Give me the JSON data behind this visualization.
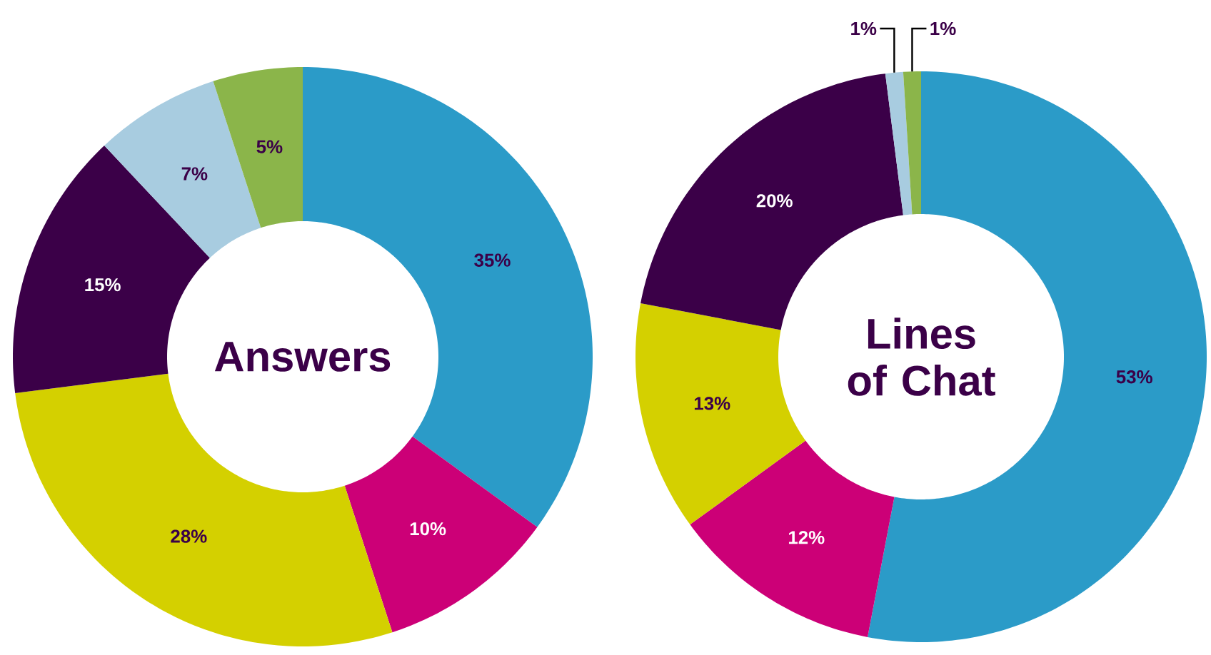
{
  "chart_data": [
    {
      "type": "donut",
      "title": "Answers",
      "categories": [
        null,
        null,
        null,
        null,
        null,
        null
      ],
      "values": [
        35,
        10,
        28,
        15,
        7,
        5
      ],
      "value_labels": [
        "35%",
        "10%",
        "28%",
        "15%",
        "7%",
        "5%"
      ],
      "colors": [
        "#2b9bc8",
        "#cc0077",
        "#d4d000",
        "#3b0048",
        "#a8cce0",
        "#8bb54a"
      ]
    },
    {
      "type": "donut",
      "title": "Lines of Chat",
      "categories": [
        null,
        null,
        null,
        null,
        null,
        null
      ],
      "values": [
        53,
        12,
        13,
        20,
        1,
        1
      ],
      "value_labels": [
        "53%",
        "12%",
        "13%",
        "20%",
        "1%",
        "1%"
      ],
      "colors": [
        "#2b9bc8",
        "#cc0077",
        "#d4d000",
        "#3b0048",
        "#a8cce0",
        "#8bb54a"
      ]
    }
  ]
}
